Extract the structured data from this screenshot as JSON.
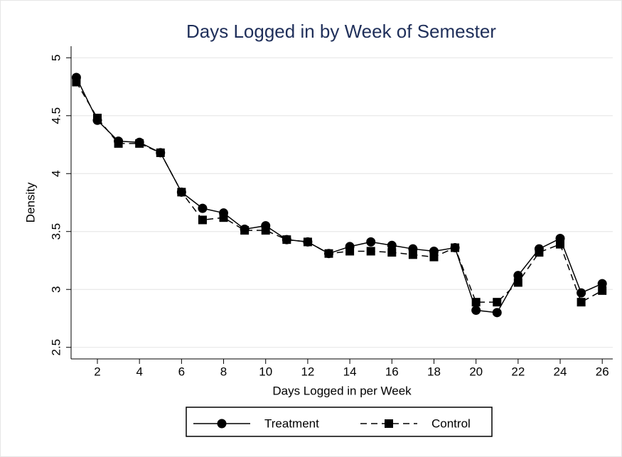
{
  "chart_data": {
    "type": "line",
    "title": "Days Logged in by Week of Semester",
    "x_label": "Days Logged in per Week",
    "y_label": "Density",
    "x": [
      1,
      2,
      3,
      4,
      5,
      6,
      7,
      8,
      9,
      10,
      11,
      12,
      13,
      14,
      15,
      16,
      17,
      18,
      19,
      20,
      21,
      22,
      23,
      24,
      25,
      26
    ],
    "series": [
      {
        "name": "Treatment",
        "color": "#000000",
        "marker": "circle",
        "dash": "solid",
        "values": [
          4.83,
          4.46,
          4.28,
          4.27,
          4.18,
          3.84,
          3.7,
          3.66,
          3.52,
          3.55,
          3.43,
          3.41,
          3.31,
          3.37,
          3.41,
          3.38,
          3.35,
          3.33,
          3.36,
          2.82,
          2.8,
          3.12,
          3.35,
          3.44,
          2.97,
          3.05
        ]
      },
      {
        "name": "Control",
        "color": "#000000",
        "marker": "square",
        "dash": "dashed",
        "values": [
          4.79,
          4.48,
          4.26,
          4.26,
          4.18,
          3.84,
          3.6,
          3.62,
          3.51,
          3.51,
          3.43,
          3.41,
          3.31,
          3.33,
          3.33,
          3.32,
          3.3,
          3.28,
          3.36,
          2.89,
          2.89,
          3.06,
          3.32,
          3.39,
          2.89,
          2.99
        ]
      }
    ],
    "xlim": [
      0.75,
      26.5
    ],
    "xticks": [
      2,
      4,
      6,
      8,
      10,
      12,
      14,
      16,
      18,
      20,
      22,
      24,
      26
    ],
    "ylim": [
      2.4,
      5.1
    ],
    "yticks": [
      2.5,
      3,
      3.5,
      4,
      4.5,
      5
    ],
    "grid": true,
    "legend": "bottom"
  }
}
